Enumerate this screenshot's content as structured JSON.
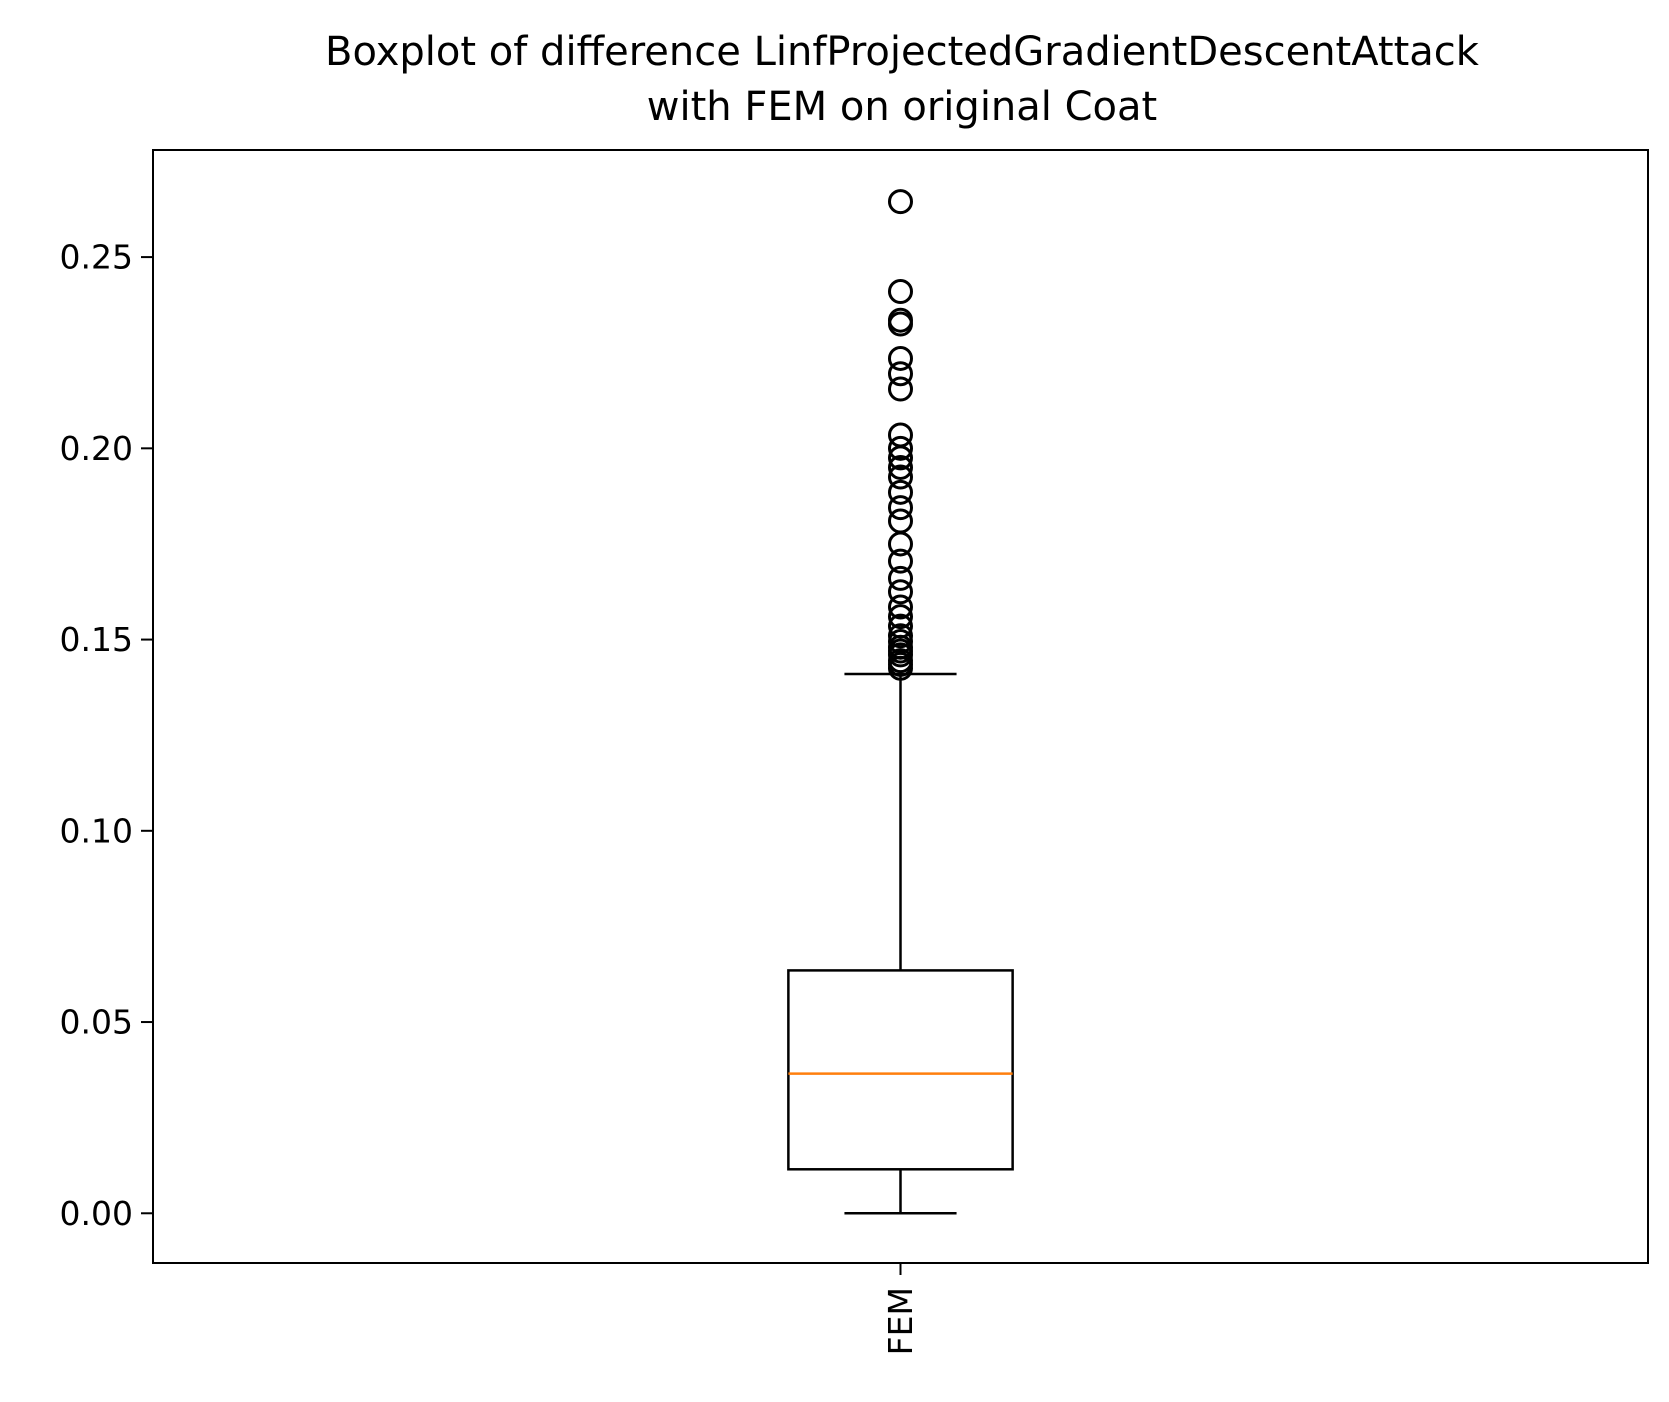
{
  "chart_data": {
    "type": "box",
    "title_lines": [
      "Boxplot of difference LinfProjectedGradientDescentAttack",
      "with FEM on original Coat"
    ],
    "xlabel": "",
    "ylabel": "",
    "categories": [
      "FEM"
    ],
    "ylim": [
      -0.013,
      0.278
    ],
    "yticks": [
      0.0,
      0.05,
      0.1,
      0.15,
      0.2,
      0.25
    ],
    "ytick_labels": [
      "0.00",
      "0.05",
      "0.10",
      "0.15",
      "0.20",
      "0.25"
    ],
    "grid": false,
    "boxes": [
      {
        "category": "FEM",
        "whisker_low": 0.0,
        "q1": 0.0115,
        "median": 0.0365,
        "q3": 0.0635,
        "whisker_high": 0.141,
        "outliers": [
          0.1425,
          0.1435,
          0.1445,
          0.146,
          0.147,
          0.148,
          0.1495,
          0.151,
          0.1535,
          0.156,
          0.1585,
          0.1625,
          0.166,
          0.1705,
          0.175,
          0.181,
          0.1845,
          0.1885,
          0.1925,
          0.195,
          0.1975,
          0.2,
          0.2035,
          0.2155,
          0.2195,
          0.2235,
          0.2325,
          0.2335,
          0.241,
          0.2645
        ]
      }
    ],
    "colors": {
      "box": "#000000",
      "median": "#ff7f0e",
      "outlier": "#000000",
      "axes": "#000000"
    }
  }
}
